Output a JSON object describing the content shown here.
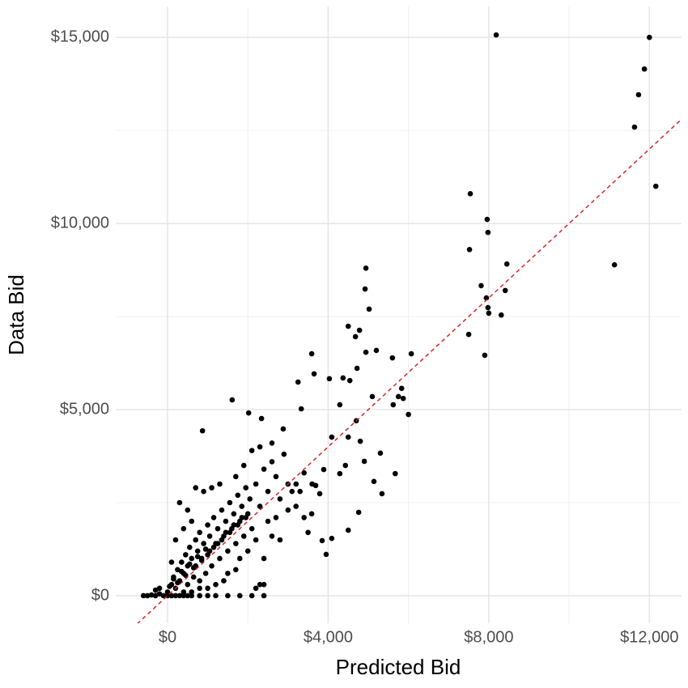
{
  "chart_data": {
    "type": "scatter",
    "x_label": "Predicted Bid",
    "y_label": "Data Bid",
    "color": "#000000",
    "grid": true,
    "xlim": [
      -1290,
      12800
    ],
    "ylim": [
      -740,
      15830
    ],
    "xticks": [
      {
        "value": 0,
        "label": "$0"
      },
      {
        "value": 4000,
        "label": "$4,000"
      },
      {
        "value": 8000,
        "label": "$8,000"
      },
      {
        "value": 12000,
        "label": "$12,000"
      }
    ],
    "yticks": [
      {
        "value": 0,
        "label": "$0"
      },
      {
        "value": 5000,
        "label": "$5,000"
      },
      {
        "value": 10000,
        "label": "$10,000"
      },
      {
        "value": 15000,
        "label": "$15,000"
      }
    ],
    "xminor": [
      2000,
      6000,
      10000
    ],
    "yminor": [
      2500,
      7500,
      12500
    ],
    "reference_line": {
      "slope": 1,
      "intercept": 0,
      "color": "#d62728",
      "dashed": true
    },
    "x": [
      8185,
      12000,
      11875,
      11730,
      11630,
      12160,
      11130,
      7540,
      7960,
      7980,
      7520,
      8450,
      7810,
      8410,
      7940,
      7980,
      8000,
      8310,
      7500,
      7900,
      4940,
      4920,
      5020,
      4500,
      4780,
      3590,
      4680,
      4940,
      5200,
      5600,
      6070,
      4030,
      4370,
      4720,
      4540,
      5830,
      5750,
      5870,
      5620,
      6000,
      5100,
      4290,
      4700,
      4500,
      4800,
      5300,
      5670,
      4090,
      3890,
      4290,
      4900,
      5140,
      5340,
      4760,
      4430,
      3330,
      3250,
      3650,
      4090,
      3850,
      3950,
      4500,
      3790,
      3590,
      3690,
      1610,
      2020,
      2340,
      870,
      2880,
      -600,
      -500,
      -400,
      -300,
      -200,
      -100,
      0,
      100,
      200,
      300,
      400,
      500,
      600,
      800,
      1000,
      1200,
      1500,
      1800,
      2100,
      2400,
      -300,
      -200,
      0,
      100,
      150,
      200,
      250,
      300,
      350,
      400,
      450,
      500,
      500,
      550,
      600,
      650,
      700,
      700,
      750,
      800,
      800,
      850,
      900,
      950,
      1000,
      1000,
      1050,
      1100,
      1150,
      1200,
      1250,
      1300,
      1350,
      1400,
      1450,
      1500,
      1550,
      1600,
      1650,
      1700,
      1750,
      1800,
      1850,
      1900,
      1950,
      2000,
      2050,
      2100,
      2200,
      2300,
      2400,
      2500,
      2600,
      2700,
      2800,
      2900,
      3000,
      3100,
      3200,
      2500,
      2200,
      1800,
      1500,
      1200,
      300,
      500,
      700,
      900,
      1100,
      1300,
      400,
      600,
      200,
      100,
      1900,
      2100,
      2300,
      1700,
      2600,
      2400,
      2200,
      2300,
      2400,
      3500,
      3400,
      3300,
      2800,
      2600,
      1000,
      800,
      600,
      400,
      1400,
      1700,
      2000,
      2700,
      3000,
      3200,
      3400,
      3600,
      50,
      150,
      250,
      350,
      450,
      550,
      650,
      750,
      850,
      950,
      1050,
      1150,
      1250,
      1350,
      1450,
      1550,
      1650,
      1750,
      1850,
      1950
    ],
    "y": [
      15065,
      15000,
      14150,
      13460,
      12590,
      11000,
      8890,
      10800,
      10110,
      9760,
      9300,
      8910,
      8330,
      8200,
      8000,
      7740,
      7590,
      7540,
      7020,
      6460,
      8800,
      8240,
      7700,
      7240,
      7130,
      6500,
      6960,
      6540,
      6590,
      6390,
      6500,
      5830,
      5850,
      6110,
      5780,
      5570,
      5350,
      5300,
      5130,
      4870,
      5350,
      5130,
      4700,
      4260,
      4150,
      3830,
      3280,
      4260,
      3390,
      3280,
      3610,
      3070,
      2740,
      2240,
      3500,
      5020,
      5740,
      5960,
      1540,
      1480,
      1110,
      1760,
      2740,
      2200,
      2960,
      5260,
      4910,
      4760,
      4430,
      4480,
      0,
      0,
      20,
      0,
      50,
      0,
      0,
      0,
      0,
      0,
      0,
      0,
      0,
      0,
      0,
      0,
      0,
      0,
      0,
      0,
      150,
      200,
      100,
      300,
      500,
      200,
      700,
      400,
      900,
      600,
      1100,
      300,
      800,
      1300,
      1000,
      500,
      1500,
      800,
      1200,
      400,
      1700,
      1000,
      1400,
      600,
      1900,
      1100,
      1600,
      800,
      2100,
      1400,
      1800,
      1000,
      2300,
      1600,
      2000,
      1200,
      2500,
      1800,
      2200,
      1400,
      2700,
      2000,
      2400,
      1600,
      2900,
      2200,
      2600,
      1800,
      3000,
      2400,
      3400,
      2800,
      3600,
      3200,
      2600,
      3800,
      3000,
      2800,
      2400,
      2000,
      1500,
      1000,
      600,
      300,
      2500,
      2300,
      2900,
      2800,
      2900,
      3000,
      1800,
      2000,
      1500,
      900,
      3500,
      3900,
      4000,
      3200,
      4100,
      1000,
      200,
      300,
      300,
      1700,
      2100,
      2800,
      1500,
      1600,
      200,
      200,
      100,
      100,
      400,
      700,
      1200,
      2100,
      2300,
      3000,
      3300,
      3000,
      250,
      450,
      350,
      650,
      550,
      850,
      750,
      1050,
      950,
      1250,
      1200,
      1300,
      1400,
      1500,
      1700,
      1700,
      1900,
      1900,
      2100,
      2100
    ]
  }
}
